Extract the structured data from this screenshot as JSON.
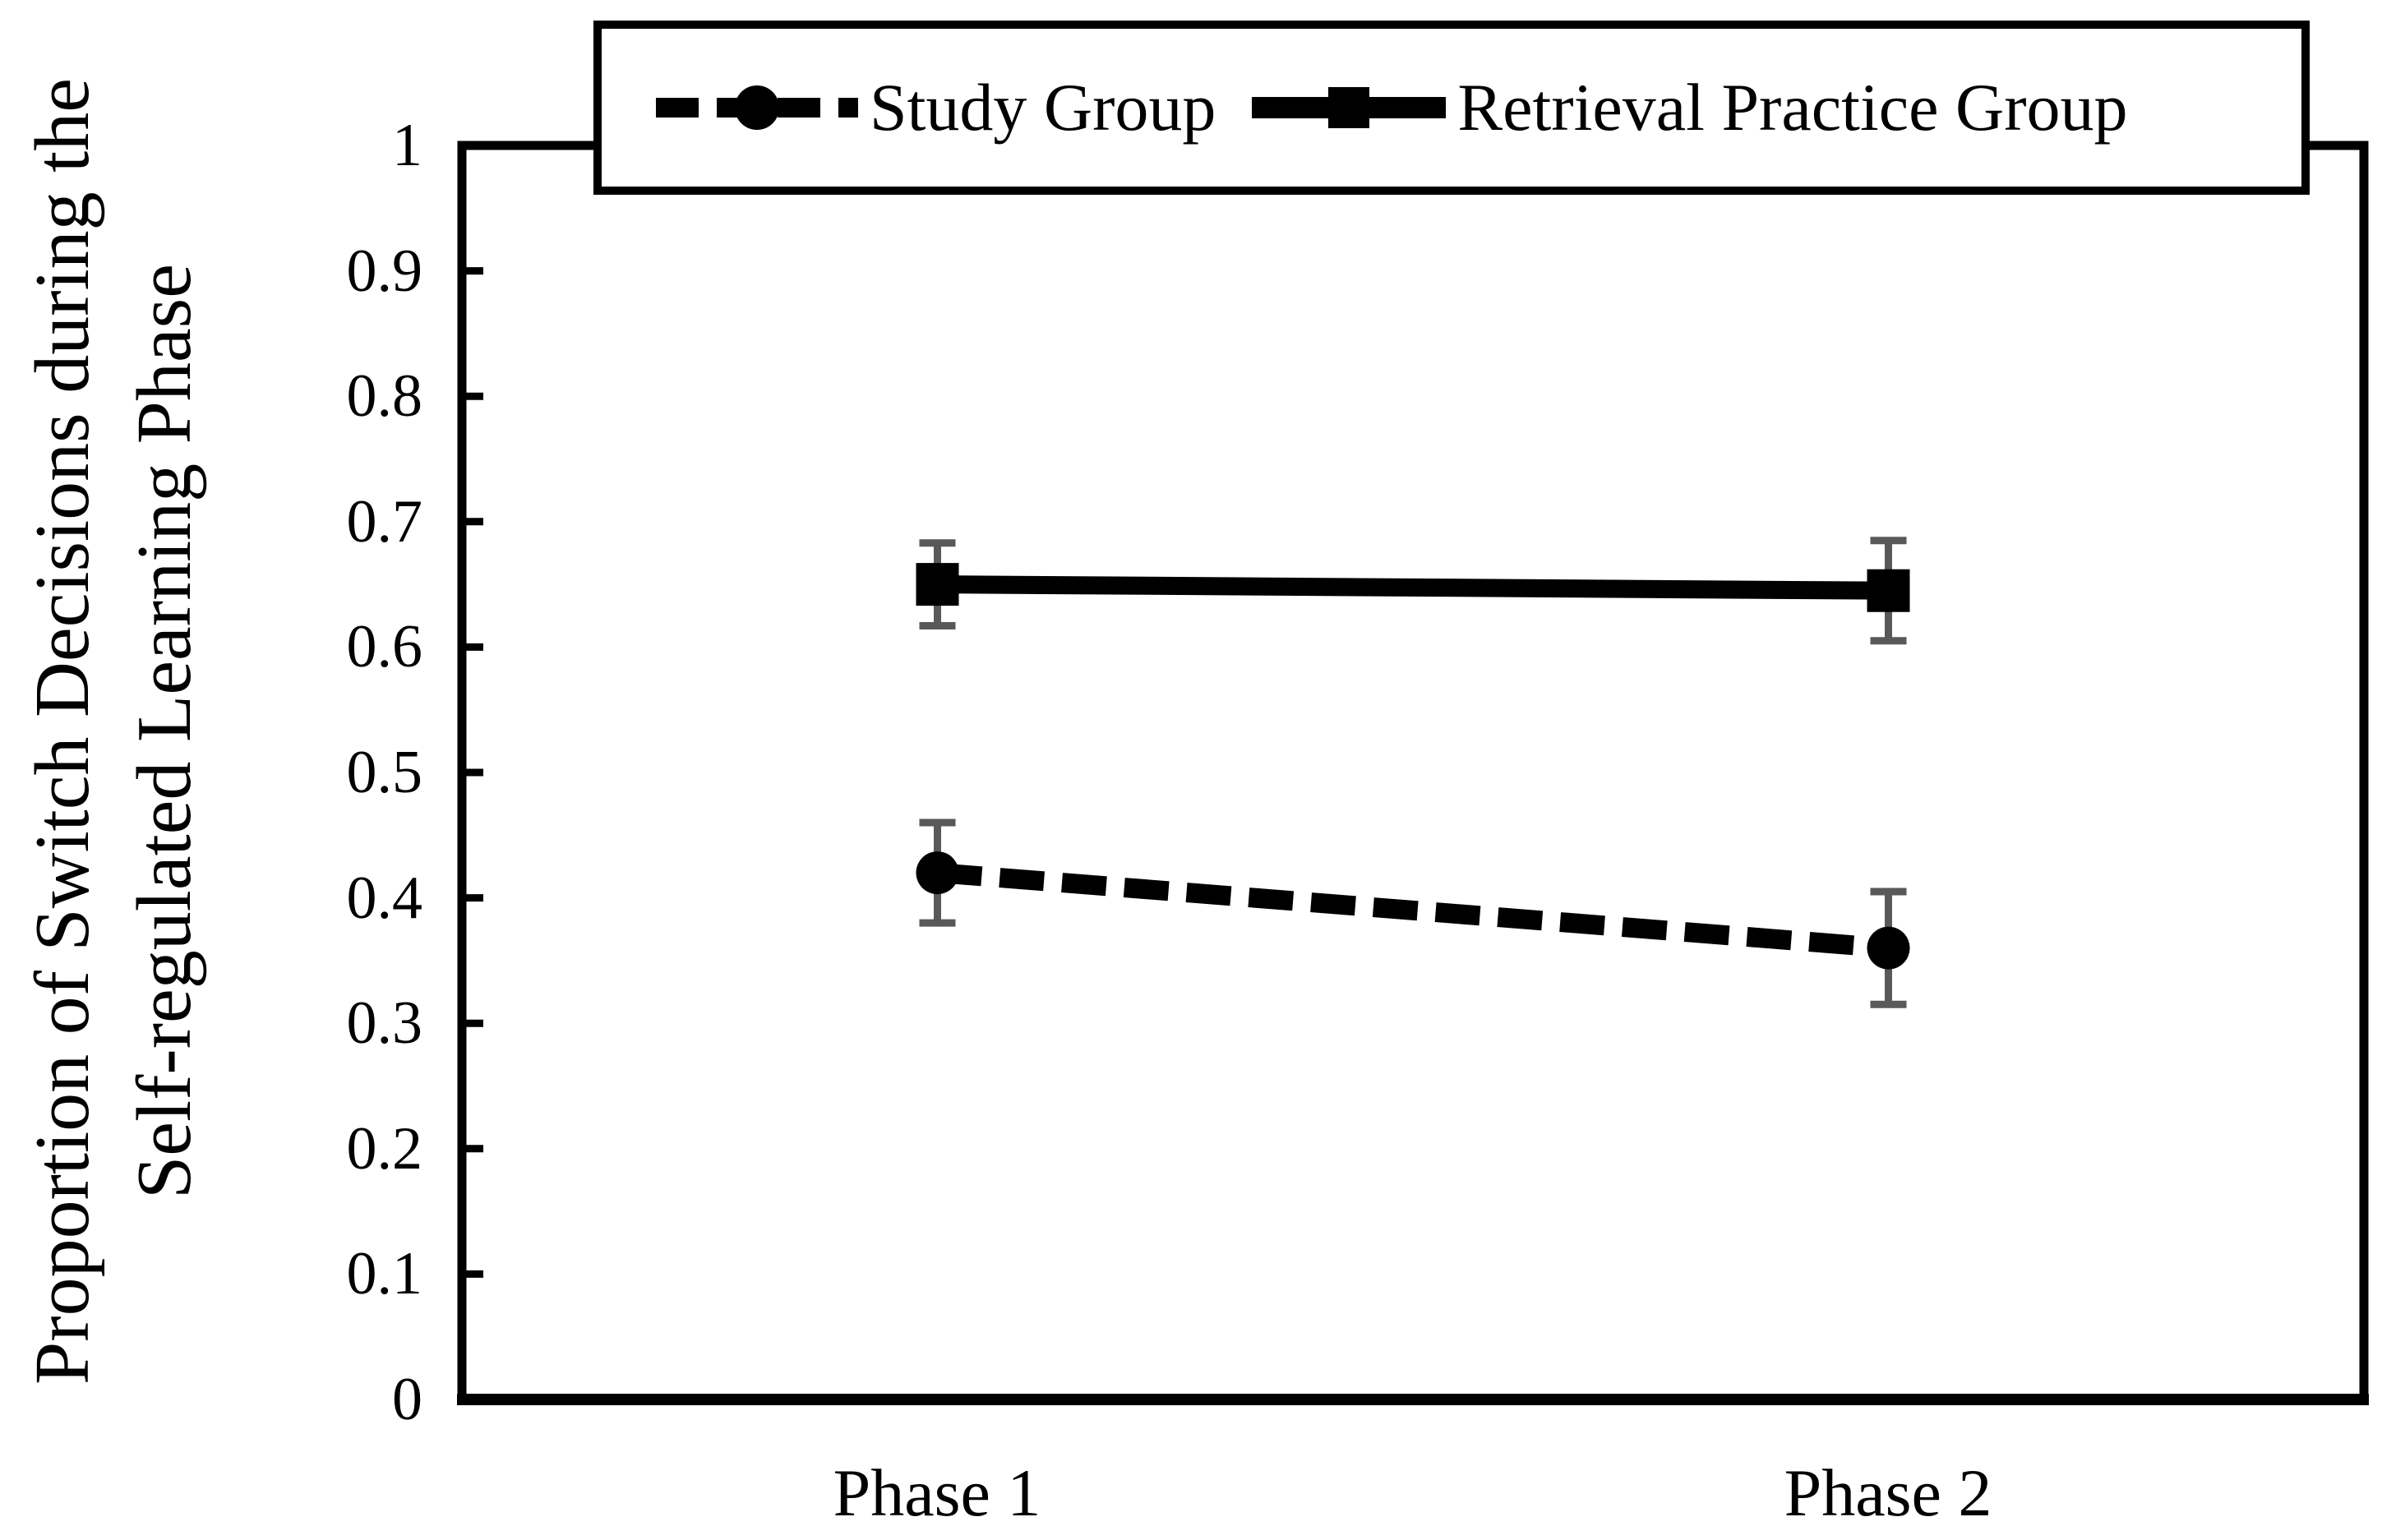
{
  "chart_data": {
    "type": "line",
    "title": "",
    "categories": [
      "Phase 1",
      "Phase 2"
    ],
    "series": [
      {
        "name": "Study Group",
        "values": [
          0.42,
          0.36
        ],
        "errors": [
          0.04,
          0.045
        ],
        "marker": "circle",
        "linestyle": "dashed"
      },
      {
        "name": "Retrieval Practice Group",
        "values": [
          0.65,
          0.645
        ],
        "errors": [
          0.033,
          0.04
        ],
        "marker": "square",
        "linestyle": "solid"
      }
    ],
    "ylabel_line1": "Proportion of Switch Decisions during the",
    "ylabel_line2": "Self-regulated Learning Phase",
    "xlabel": "",
    "ylim": [
      0,
      1
    ],
    "yticks": [
      "0",
      "0.1",
      "0.2",
      "0.3",
      "0.4",
      "0.5",
      "0.6",
      "0.7",
      "0.8",
      "0.9",
      "1"
    ],
    "grid": false,
    "legend_position": "top",
    "colors": {
      "series": "#000000",
      "error_bars": "#595959",
      "axis": "#000000",
      "background": "#ffffff"
    }
  }
}
